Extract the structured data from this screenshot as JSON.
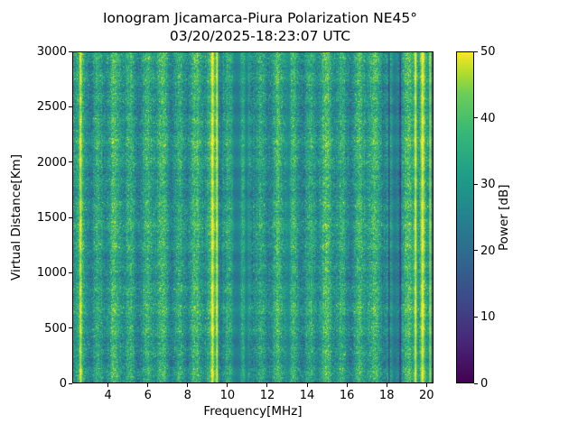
{
  "figure": {
    "background": "#ffffff",
    "text_color": "#000000",
    "frame_color": "#000000"
  },
  "chart_data": {
    "type": "heatmap",
    "title": "Ionogram Jicamarca-Piura Polarization NE45°",
    "subtitle": "03/20/2025-18:23:07 UTC",
    "xlabel": "Frequency[MHz]",
    "ylabel": "Virtual Distance[Km]",
    "x_range": [
      2.2,
      20.35
    ],
    "y_range": [
      0,
      3000
    ],
    "x_ticks": [
      4,
      6,
      8,
      10,
      12,
      14,
      16,
      18,
      20
    ],
    "y_ticks": [
      0,
      500,
      1000,
      1500,
      2000,
      2500,
      3000
    ],
    "grid": false,
    "colorbar": {
      "label": "Power [dB]",
      "range": [
        0,
        50
      ],
      "ticks": [
        0,
        10,
        20,
        30,
        40,
        50
      ],
      "colormap": "viridis",
      "position": "right"
    },
    "colormap_stops": [
      [
        0.0,
        "#440154"
      ],
      [
        0.125,
        "#482878"
      ],
      [
        0.25,
        "#3e4a89"
      ],
      [
        0.375,
        "#31688e"
      ],
      [
        0.5,
        "#26828e"
      ],
      [
        0.625,
        "#1f9e89"
      ],
      [
        0.75,
        "#35b779"
      ],
      [
        0.875,
        "#6ece58"
      ],
      [
        0.94,
        "#b5de2b"
      ],
      [
        1.0,
        "#fde725"
      ]
    ],
    "noise": {
      "base_db": 31,
      "stripe_amp_db": 5,
      "stripe_period_mhz": 0.82,
      "noise_amp_db": 9,
      "row_ripple_db": 1.8,
      "row_period_km": 190,
      "seed": 20250320
    },
    "bands": [
      {
        "center_mhz": 2.62,
        "width_mhz": 0.12,
        "power_db": 49
      },
      {
        "center_mhz": 9.25,
        "width_mhz": 0.16,
        "power_db": 50
      },
      {
        "center_mhz": 9.47,
        "width_mhz": 0.12,
        "power_db": 50
      },
      {
        "center_mhz": 10.48,
        "width_mhz": 0.4,
        "power_db": 24
      },
      {
        "center_mhz": 10.95,
        "width_mhz": 0.22,
        "power_db": 25
      },
      {
        "center_mhz": 13.05,
        "width_mhz": 0.18,
        "power_db": 27
      },
      {
        "center_mhz": 18.12,
        "width_mhz": 0.07,
        "power_db": 10
      },
      {
        "center_mhz": 18.4,
        "width_mhz": 0.3,
        "power_db": 23
      },
      {
        "center_mhz": 18.68,
        "width_mhz": 0.07,
        "power_db": 9
      },
      {
        "center_mhz": 19.45,
        "width_mhz": 0.14,
        "power_db": 50
      },
      {
        "center_mhz": 19.8,
        "width_mhz": 0.18,
        "power_db": 50
      },
      {
        "center_mhz": 20.18,
        "width_mhz": 0.1,
        "power_db": 48
      }
    ]
  }
}
